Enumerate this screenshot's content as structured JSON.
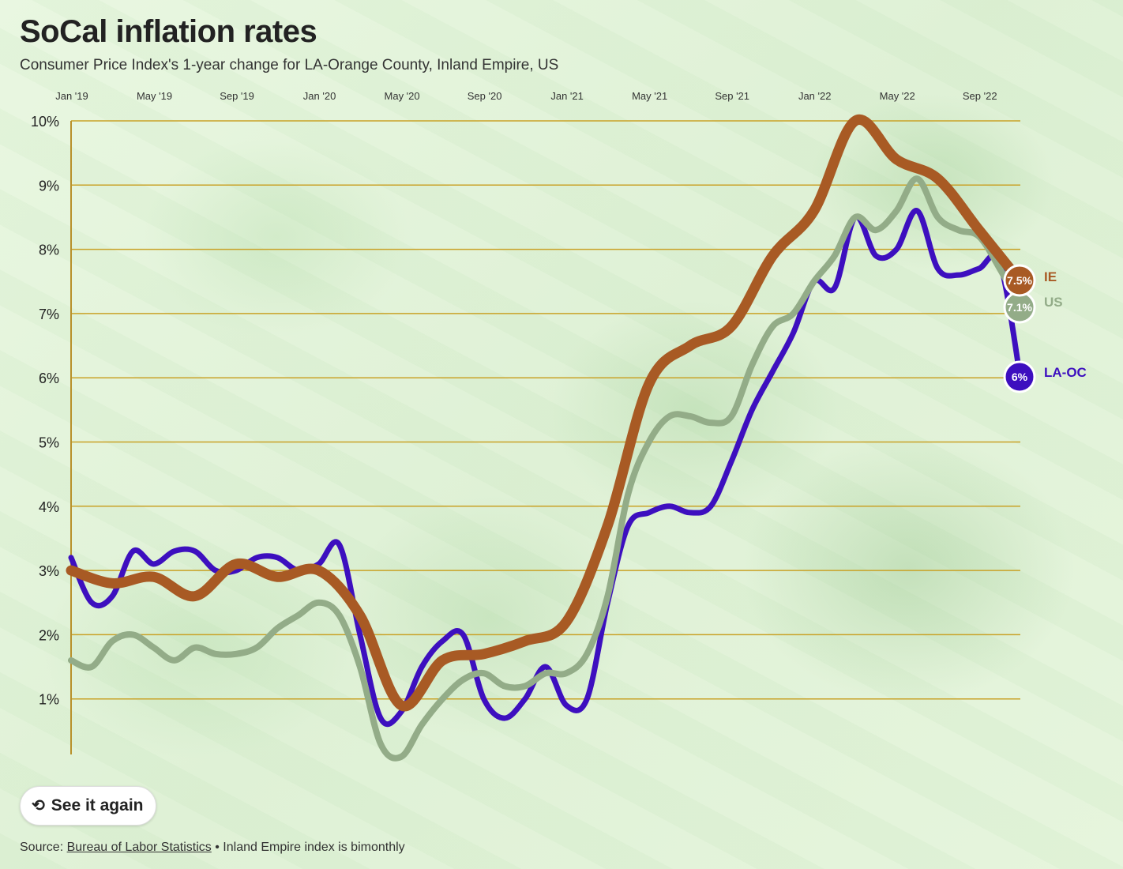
{
  "title": "SoCal inflation rates",
  "subtitle": "Consumer Price Index's 1-year change for LA-Orange County, Inland Empire, US",
  "replay_label": "See it again",
  "replay_icon": "replay-icon",
  "source": {
    "prefix": "Source: ",
    "link_text": "Bureau of Labor Statistics",
    "note": " • Inland Empire index is bimonthly"
  },
  "colors": {
    "LA-OC": "#3d0fbf",
    "IE": "#a85a24",
    "US": "#93ac88",
    "gridline": "#c9a227",
    "axis": "#b8902a"
  },
  "chart_data": {
    "type": "line",
    "x_tick_labels": [
      "Jan '19",
      "May '19",
      "Sep '19",
      "Jan '20",
      "May '20",
      "Sep '20",
      "Jan '21",
      "May '21",
      "Sep '21",
      "Jan '22",
      "May '22",
      "Sep '22"
    ],
    "y_tick_labels": [
      "1%",
      "2%",
      "3%",
      "4%",
      "5%",
      "6%",
      "7%",
      "8%",
      "9%",
      "10%"
    ],
    "ylim": [
      0,
      10
    ],
    "x_range": [
      "2019-01",
      "2022-11"
    ],
    "grid": true,
    "series": [
      {
        "name": "LA-OC",
        "end_label": "6%",
        "points": [
          [
            "2019-01",
            3.2
          ],
          [
            "2019-02",
            2.5
          ],
          [
            "2019-03",
            2.6
          ],
          [
            "2019-04",
            3.3
          ],
          [
            "2019-05",
            3.1
          ],
          [
            "2019-06",
            3.3
          ],
          [
            "2019-07",
            3.3
          ],
          [
            "2019-08",
            3.0
          ],
          [
            "2019-09",
            3.0
          ],
          [
            "2019-10",
            3.2
          ],
          [
            "2019-11",
            3.2
          ],
          [
            "2019-12",
            3.0
          ],
          [
            "2020-01",
            3.1
          ],
          [
            "2020-02",
            3.4
          ],
          [
            "2020-03",
            2.0
          ],
          [
            "2020-04",
            0.7
          ],
          [
            "2020-05",
            0.8
          ],
          [
            "2020-06",
            1.5
          ],
          [
            "2020-07",
            1.9
          ],
          [
            "2020-08",
            2.0
          ],
          [
            "2020-09",
            1.0
          ],
          [
            "2020-10",
            0.7
          ],
          [
            "2020-11",
            1.0
          ],
          [
            "2020-12",
            1.5
          ],
          [
            "2021-01",
            0.9
          ],
          [
            "2021-02",
            1.0
          ],
          [
            "2021-03",
            2.5
          ],
          [
            "2021-04",
            3.7
          ],
          [
            "2021-05",
            3.9
          ],
          [
            "2021-06",
            4.0
          ],
          [
            "2021-07",
            3.9
          ],
          [
            "2021-08",
            4.0
          ],
          [
            "2021-09",
            4.7
          ],
          [
            "2021-10",
            5.5
          ],
          [
            "2021-11",
            6.1
          ],
          [
            "2021-12",
            6.7
          ],
          [
            "2022-01",
            7.5
          ],
          [
            "2022-02",
            7.4
          ],
          [
            "2022-03",
            8.5
          ],
          [
            "2022-04",
            7.9
          ],
          [
            "2022-05",
            8.0
          ],
          [
            "2022-06",
            8.6
          ],
          [
            "2022-07",
            7.7
          ],
          [
            "2022-08",
            7.6
          ],
          [
            "2022-09",
            7.7
          ],
          [
            "2022-10",
            7.8
          ],
          [
            "2022-11",
            6.0
          ]
        ]
      },
      {
        "name": "IE",
        "end_label": "7.5%",
        "points": [
          [
            "2019-01",
            3.0
          ],
          [
            "2019-03",
            2.8
          ],
          [
            "2019-05",
            2.9
          ],
          [
            "2019-07",
            2.6
          ],
          [
            "2019-09",
            3.1
          ],
          [
            "2019-11",
            2.9
          ],
          [
            "2020-01",
            3.0
          ],
          [
            "2020-03",
            2.3
          ],
          [
            "2020-05",
            0.9
          ],
          [
            "2020-07",
            1.6
          ],
          [
            "2020-09",
            1.7
          ],
          [
            "2020-11",
            1.9
          ],
          [
            "2021-01",
            2.2
          ],
          [
            "2021-03",
            3.7
          ],
          [
            "2021-05",
            5.9
          ],
          [
            "2021-07",
            6.5
          ],
          [
            "2021-09",
            6.8
          ],
          [
            "2021-11",
            7.9
          ],
          [
            "2022-01",
            8.6
          ],
          [
            "2022-03",
            10.0
          ],
          [
            "2022-05",
            9.4
          ],
          [
            "2022-07",
            9.1
          ],
          [
            "2022-09",
            8.3
          ],
          [
            "2022-11",
            7.5
          ]
        ]
      },
      {
        "name": "US",
        "end_label": "7.1%",
        "points": [
          [
            "2019-01",
            1.6
          ],
          [
            "2019-02",
            1.5
          ],
          [
            "2019-03",
            1.9
          ],
          [
            "2019-04",
            2.0
          ],
          [
            "2019-05",
            1.8
          ],
          [
            "2019-06",
            1.6
          ],
          [
            "2019-07",
            1.8
          ],
          [
            "2019-08",
            1.7
          ],
          [
            "2019-09",
            1.7
          ],
          [
            "2019-10",
            1.8
          ],
          [
            "2019-11",
            2.1
          ],
          [
            "2019-12",
            2.3
          ],
          [
            "2020-01",
            2.5
          ],
          [
            "2020-02",
            2.3
          ],
          [
            "2020-03",
            1.5
          ],
          [
            "2020-04",
            0.3
          ],
          [
            "2020-05",
            0.1
          ],
          [
            "2020-06",
            0.6
          ],
          [
            "2020-07",
            1.0
          ],
          [
            "2020-08",
            1.3
          ],
          [
            "2020-09",
            1.4
          ],
          [
            "2020-10",
            1.2
          ],
          [
            "2020-11",
            1.2
          ],
          [
            "2020-12",
            1.4
          ],
          [
            "2021-01",
            1.4
          ],
          [
            "2021-02",
            1.7
          ],
          [
            "2021-03",
            2.6
          ],
          [
            "2021-04",
            4.2
          ],
          [
            "2021-05",
            5.0
          ],
          [
            "2021-06",
            5.4
          ],
          [
            "2021-07",
            5.4
          ],
          [
            "2021-08",
            5.3
          ],
          [
            "2021-09",
            5.4
          ],
          [
            "2021-10",
            6.2
          ],
          [
            "2021-11",
            6.8
          ],
          [
            "2021-12",
            7.0
          ],
          [
            "2022-01",
            7.5
          ],
          [
            "2022-02",
            7.9
          ],
          [
            "2022-03",
            8.5
          ],
          [
            "2022-04",
            8.3
          ],
          [
            "2022-05",
            8.6
          ],
          [
            "2022-06",
            9.1
          ],
          [
            "2022-07",
            8.5
          ],
          [
            "2022-08",
            8.3
          ],
          [
            "2022-09",
            8.2
          ],
          [
            "2022-10",
            7.7
          ],
          [
            "2022-11",
            7.1
          ]
        ]
      }
    ]
  }
}
